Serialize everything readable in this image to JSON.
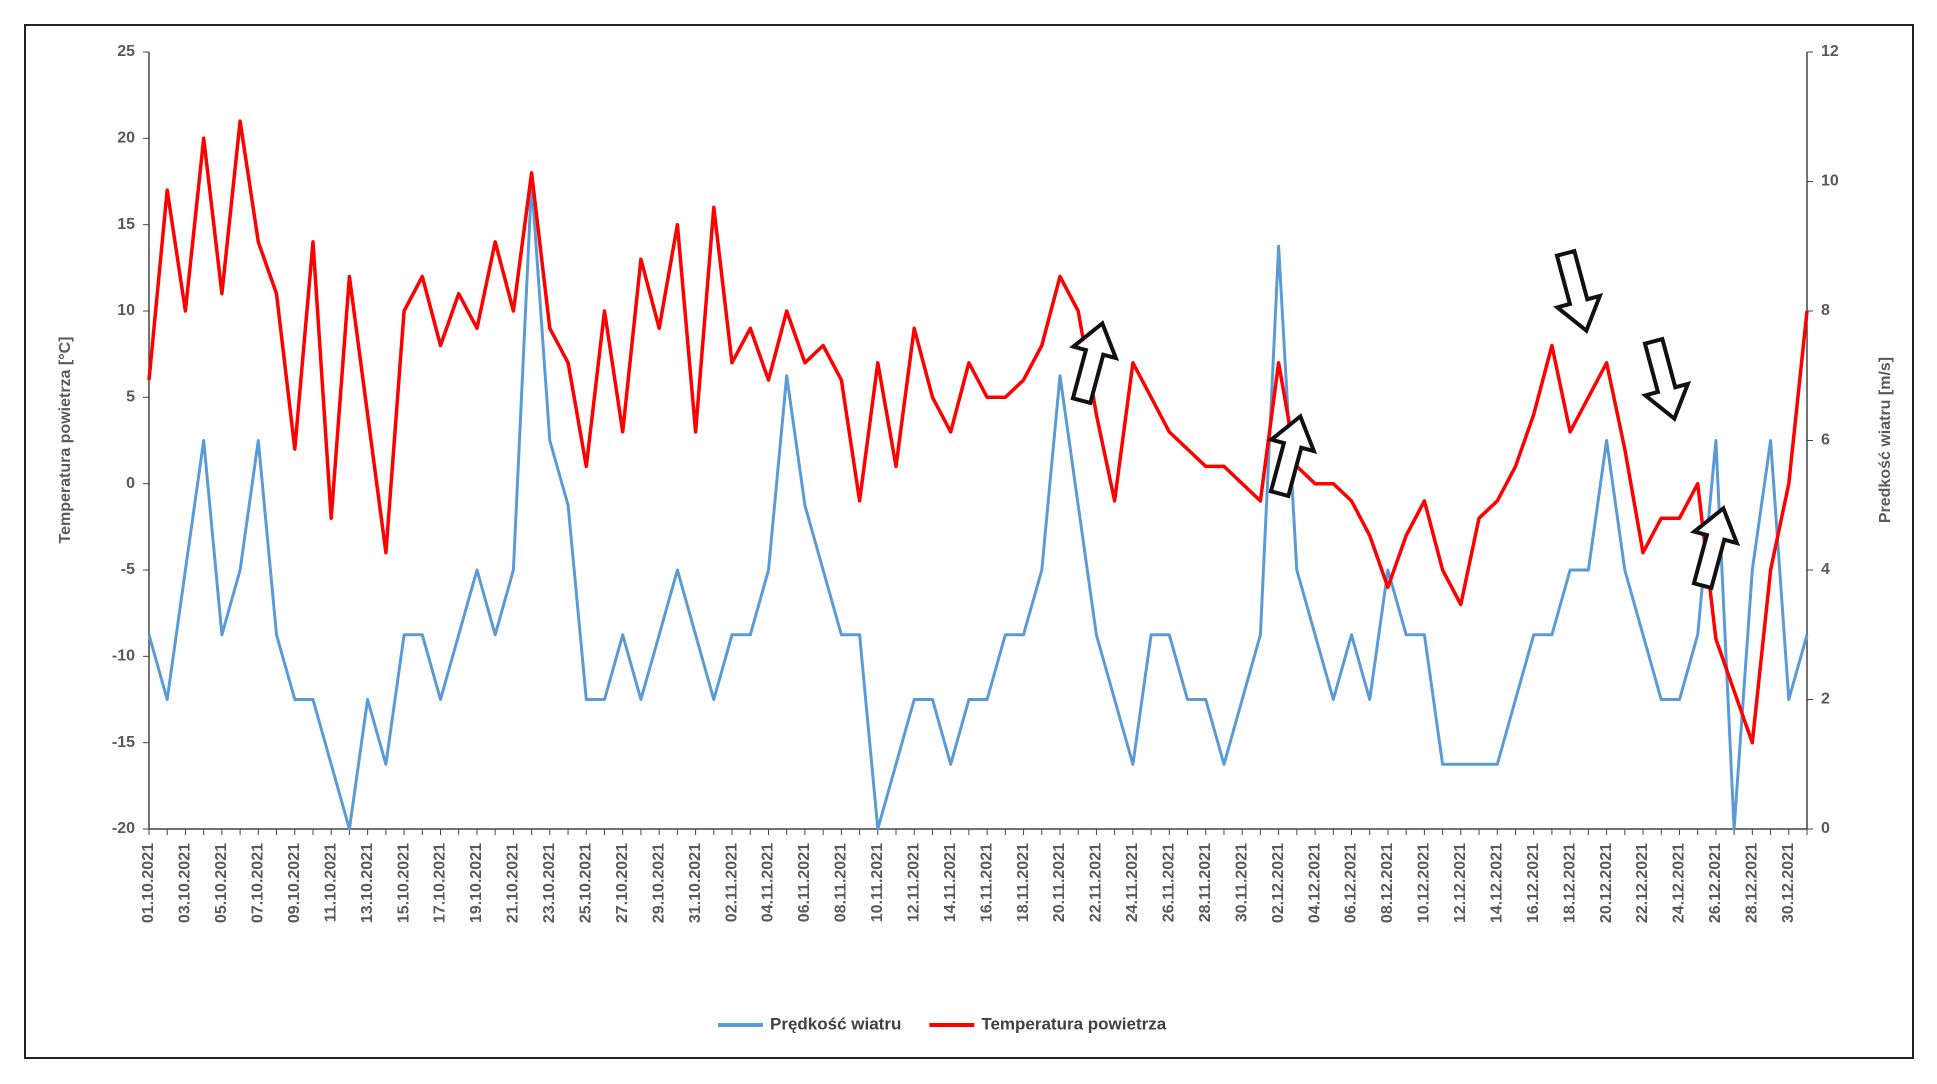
{
  "chart_data": {
    "type": "line",
    "ylabel": "Temperatura powietrza [°C]",
    "y2label": "Predkość wiatru [m/s]",
    "ylim": [
      -20,
      25
    ],
    "yticks": [
      -20,
      -15,
      -10,
      -5,
      0,
      5,
      10,
      15,
      20,
      25
    ],
    "y2lim": [
      0,
      12
    ],
    "y2ticks": [
      0,
      2,
      4,
      6,
      8,
      10,
      12
    ],
    "legend": "bottom",
    "categories": [
      "01.10.2021",
      null,
      "03.10.2021",
      null,
      "05.10.2021",
      null,
      "07.10.2021",
      null,
      "09.10.2021",
      null,
      "11.10.2021",
      null,
      "13.10.2021",
      null,
      "15.10.2021",
      null,
      "17.10.2021",
      null,
      "19.10.2021",
      null,
      "21.10.2021",
      null,
      "23.10.2021",
      null,
      "25.10.2021",
      null,
      "27.10.2021",
      null,
      "29.10.2021",
      null,
      "31.10.2021",
      null,
      "02.11.2021",
      null,
      "04.11.2021",
      null,
      "06.11.2021",
      null,
      "08.11.2021",
      null,
      "10.11.2021",
      null,
      "12.11.2021",
      null,
      "14.11.2021",
      null,
      "16.11.2021",
      null,
      "18.11.2021",
      null,
      "20.11.2021",
      null,
      "22.11.2021",
      null,
      "24.11.2021",
      null,
      "26.11.2021",
      null,
      "28.11.2021",
      null,
      "30.11.2021",
      null,
      "02.12.2021",
      null,
      "04.12.2021",
      null,
      "06.12.2021",
      null,
      "08.12.2021",
      null,
      "10.12.2021",
      null,
      "12.12.2021",
      null,
      "14.12.2021",
      null,
      "16.12.2021",
      null,
      "18.12.2021",
      null,
      "20.12.2021",
      null,
      "22.12.2021",
      null,
      "24.12.2021",
      null,
      "26.12.2021",
      null,
      "28.12.2021",
      null,
      "30.12.2021",
      null
    ],
    "series": [
      {
        "name": "Prędkość wiatru",
        "color": "#5b9bd5",
        "axis": "y2",
        "values": [
          3,
          2,
          4,
          6,
          3,
          4,
          6,
          3,
          2,
          2,
          1,
          0,
          2,
          1,
          3,
          3,
          2,
          3,
          4,
          3,
          4,
          10,
          6,
          5,
          2,
          2,
          3,
          2,
          3,
          4,
          3,
          2,
          3,
          3,
          4,
          7,
          5,
          4,
          3,
          3,
          0,
          1,
          2,
          2,
          1,
          2,
          2,
          3,
          3,
          4,
          7,
          5,
          3,
          2,
          1,
          3,
          3,
          2,
          2,
          1,
          2,
          3,
          9,
          4,
          3,
          2,
          3,
          2,
          4,
          3,
          3,
          1,
          1,
          1,
          1,
          2,
          3,
          3,
          4,
          4,
          6,
          4,
          3,
          2,
          2,
          3,
          6,
          0,
          4,
          6,
          2,
          3
        ]
      },
      {
        "name": "Temperatura powietrza",
        "color": "#ff0000",
        "values": [
          6,
          17,
          10,
          20,
          11,
          21,
          14,
          11,
          2,
          14,
          -2,
          12,
          4,
          -4,
          10,
          12,
          8,
          11,
          9,
          14,
          10,
          18,
          9,
          7,
          1,
          10,
          3,
          13,
          9,
          15,
          3,
          16,
          7,
          9,
          6,
          10,
          7,
          8,
          6,
          -1,
          7,
          1,
          9,
          5,
          3,
          7,
          5,
          5,
          6,
          8,
          12,
          10,
          4,
          -1,
          7,
          5,
          3,
          2,
          1,
          1,
          0,
          -1,
          7,
          1,
          0,
          0,
          -1,
          -3,
          -6,
          -3,
          -1,
          -5,
          -7,
          -2,
          -1,
          1,
          4,
          8,
          3,
          5,
          7,
          2,
          -4,
          -2,
          -2,
          0,
          -9,
          -12,
          -15,
          -5,
          0,
          10
        ]
      }
    ]
  }
}
